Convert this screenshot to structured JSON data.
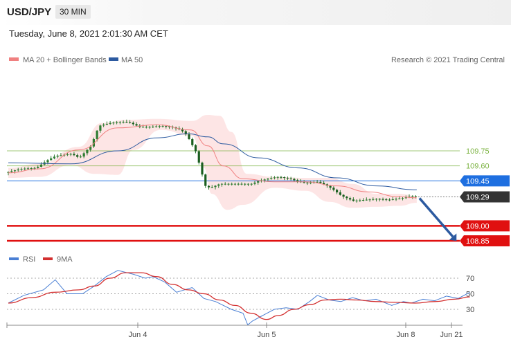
{
  "header": {
    "symbol": "USD/JPY",
    "timeframe": "30 MIN",
    "datetime": "Tuesday, June 8, 2021 2:01:30 AM CET"
  },
  "colors": {
    "ma20": "#f08080",
    "ma50": "#2c5aa0",
    "band_fill": "#fde0e0",
    "candle": "#2e7d32",
    "rsi": "#4a7fd4",
    "rsi_ma": "#d32f2f",
    "support": "#e01010",
    "resistance": "#7cb342",
    "pivot": "#1e6fe0",
    "current": "#333333"
  },
  "chart_data": [
    {
      "type": "candlestick",
      "legend": [
        {
          "label": "MA 20 + Bollinger Bands",
          "color": "#f08080"
        },
        {
          "label": "MA 50",
          "color": "#2c5aa0"
        }
      ],
      "legend_placement": "top-left",
      "attribution": "Research © 2021 Trading Central",
      "x_ticks": [
        "Jun 4",
        "Jun 5",
        "Jun 8",
        "Jun 21"
      ],
      "ylim": [
        108.74,
        110.13
      ],
      "grid": false,
      "price_path": [
        [
          0,
          109.53
        ],
        [
          20,
          109.57
        ],
        [
          40,
          109.58
        ],
        [
          55,
          109.66
        ],
        [
          65,
          109.7
        ],
        [
          85,
          109.72
        ],
        [
          95,
          109.68
        ],
        [
          100,
          109.72
        ],
        [
          110,
          109.8
        ],
        [
          120,
          110.0
        ],
        [
          135,
          110.03
        ],
        [
          150,
          110.04
        ],
        [
          160,
          110.03
        ],
        [
          172,
          109.99
        ],
        [
          186,
          109.99
        ],
        [
          200,
          110.0
        ],
        [
          212,
          109.99
        ],
        [
          225,
          109.96
        ],
        [
          233,
          109.9
        ],
        [
          244,
          109.74
        ],
        [
          250,
          109.57
        ],
        [
          256,
          109.4
        ],
        [
          262,
          109.38
        ],
        [
          275,
          109.42
        ],
        [
          300,
          109.42
        ],
        [
          315,
          109.42
        ],
        [
          325,
          109.45
        ],
        [
          340,
          109.48
        ],
        [
          350,
          109.49
        ],
        [
          365,
          109.47
        ],
        [
          375,
          109.44
        ],
        [
          385,
          109.43
        ],
        [
          400,
          109.44
        ],
        [
          412,
          109.4
        ],
        [
          420,
          109.36
        ],
        [
          430,
          109.3
        ],
        [
          445,
          109.25
        ],
        [
          460,
          109.26
        ],
        [
          475,
          109.27
        ],
        [
          490,
          109.26
        ],
        [
          500,
          109.27
        ],
        [
          510,
          109.28
        ],
        [
          522,
          109.3
        ]
      ],
      "ma20_path": [
        [
          0,
          109.53
        ],
        [
          40,
          109.57
        ],
        [
          90,
          109.76
        ],
        [
          140,
          109.98
        ],
        [
          190,
          110.01
        ],
        [
          233,
          109.96
        ],
        [
          255,
          109.8
        ],
        [
          275,
          109.6
        ],
        [
          300,
          109.47
        ],
        [
          340,
          109.44
        ],
        [
          380,
          109.44
        ],
        [
          420,
          109.4
        ],
        [
          460,
          109.34
        ],
        [
          500,
          109.29
        ],
        [
          522,
          109.28
        ]
      ],
      "ma50_path": [
        [
          0,
          109.63
        ],
        [
          80,
          109.62
        ],
        [
          140,
          109.75
        ],
        [
          190,
          109.88
        ],
        [
          230,
          109.92
        ],
        [
          255,
          109.89
        ],
        [
          275,
          109.82
        ],
        [
          320,
          109.68
        ],
        [
          370,
          109.58
        ],
        [
          420,
          109.48
        ],
        [
          470,
          109.4
        ],
        [
          522,
          109.36
        ]
      ],
      "bb_upper_path": [
        [
          0,
          109.58
        ],
        [
          40,
          109.62
        ],
        [
          90,
          109.79
        ],
        [
          120,
          110.03
        ],
        [
          150,
          110.06
        ],
        [
          190,
          110.07
        ],
        [
          235,
          110.05
        ],
        [
          255,
          110.11
        ],
        [
          270,
          110.1
        ],
        [
          285,
          109.94
        ],
        [
          305,
          109.52
        ],
        [
          340,
          109.49
        ],
        [
          380,
          109.48
        ],
        [
          410,
          109.48
        ],
        [
          440,
          109.42
        ],
        [
          470,
          109.32
        ],
        [
          500,
          109.32
        ],
        [
          522,
          109.3
        ]
      ],
      "bb_lower_path": [
        [
          0,
          109.48
        ],
        [
          40,
          109.49
        ],
        [
          80,
          109.61
        ],
        [
          110,
          109.52
        ],
        [
          140,
          109.51
        ],
        [
          160,
          109.76
        ],
        [
          195,
          109.96
        ],
        [
          235,
          109.9
        ],
        [
          250,
          109.58
        ],
        [
          260,
          109.32
        ],
        [
          280,
          109.16
        ],
        [
          300,
          109.21
        ],
        [
          340,
          109.38
        ],
        [
          380,
          109.35
        ],
        [
          410,
          109.24
        ],
        [
          440,
          109.18
        ],
        [
          470,
          109.19
        ],
        [
          500,
          109.2
        ],
        [
          522,
          109.23
        ]
      ],
      "levels": [
        {
          "value": 109.75,
          "label": "109.75",
          "kind": "resistance"
        },
        {
          "value": 109.6,
          "label": "109.60",
          "kind": "resistance"
        },
        {
          "value": 109.45,
          "label": "109.45",
          "kind": "pivot"
        },
        {
          "value": 109.29,
          "label": "109.29",
          "kind": "current"
        },
        {
          "value": 109.0,
          "label": "109.00",
          "kind": "support"
        },
        {
          "value": 108.85,
          "label": "108.85",
          "kind": "support"
        }
      ],
      "forecast": {
        "from": 109.29,
        "to": 108.85,
        "direction": "down"
      }
    },
    {
      "type": "line",
      "legend": [
        {
          "label": "RSI",
          "color": "#4a7fd4"
        },
        {
          "label": "9MA",
          "color": "#d32f2f"
        }
      ],
      "legend_placement": "top-left",
      "ylim": [
        9,
        84
      ],
      "y_ticks": [
        70,
        50,
        30
      ],
      "rsi_path": [
        [
          0,
          38
        ],
        [
          20,
          48
        ],
        [
          45,
          55
        ],
        [
          60,
          68
        ],
        [
          75,
          50
        ],
        [
          95,
          50
        ],
        [
          110,
          60
        ],
        [
          125,
          72
        ],
        [
          140,
          80
        ],
        [
          160,
          75
        ],
        [
          175,
          70
        ],
        [
          185,
          72
        ],
        [
          200,
          65
        ],
        [
          215,
          52
        ],
        [
          235,
          58
        ],
        [
          250,
          44
        ],
        [
          265,
          40
        ],
        [
          285,
          30
        ],
        [
          300,
          25
        ],
        [
          306,
          10
        ],
        [
          312,
          15
        ],
        [
          325,
          22
        ],
        [
          340,
          30
        ],
        [
          355,
          32
        ],
        [
          370,
          30
        ],
        [
          385,
          40
        ],
        [
          395,
          48
        ],
        [
          410,
          42
        ],
        [
          425,
          40
        ],
        [
          440,
          45
        ],
        [
          455,
          41
        ],
        [
          470,
          43
        ],
        [
          490,
          35
        ],
        [
          505,
          40
        ],
        [
          515,
          38
        ],
        [
          530,
          43
        ],
        [
          545,
          41
        ],
        [
          560,
          47
        ],
        [
          575,
          44
        ],
        [
          590,
          52
        ]
      ],
      "rsi_ma_path": [
        [
          0,
          38
        ],
        [
          30,
          45
        ],
        [
          60,
          52
        ],
        [
          90,
          55
        ],
        [
          110,
          60
        ],
        [
          130,
          70
        ],
        [
          150,
          77
        ],
        [
          170,
          77
        ],
        [
          190,
          72
        ],
        [
          210,
          62
        ],
        [
          230,
          55
        ],
        [
          250,
          50
        ],
        [
          270,
          42
        ],
        [
          290,
          35
        ],
        [
          310,
          25
        ],
        [
          330,
          17
        ],
        [
          345,
          22
        ],
        [
          365,
          30
        ],
        [
          385,
          36
        ],
        [
          405,
          42
        ],
        [
          425,
          43
        ],
        [
          445,
          42
        ],
        [
          470,
          40
        ],
        [
          495,
          39
        ],
        [
          520,
          38
        ],
        [
          545,
          40
        ],
        [
          570,
          43
        ],
        [
          590,
          46
        ]
      ]
    }
  ]
}
